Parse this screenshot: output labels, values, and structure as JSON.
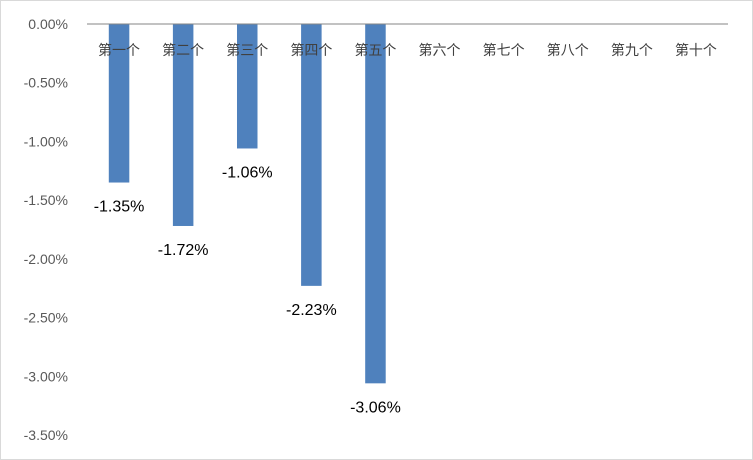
{
  "chart_data": {
    "type": "bar",
    "title": "",
    "xlabel": "",
    "ylabel": "",
    "categories": [
      "第一个",
      "第二个",
      "第三个",
      "第四个",
      "第五个",
      "第六个",
      "第七个",
      "第八个",
      "第九个",
      "第十个"
    ],
    "values": [
      -1.35,
      -1.72,
      -1.06,
      -2.23,
      -3.06,
      null,
      null,
      null,
      null,
      null
    ],
    "data_labels": [
      "-1.35%",
      "-1.72%",
      "-1.06%",
      "-2.23%",
      "-3.06%",
      "",
      "",
      "",
      "",
      ""
    ],
    "ylim": [
      -3.5,
      0
    ],
    "yticks": [
      0,
      -0.5,
      -1.0,
      -1.5,
      -2.0,
      -2.5,
      -3.0,
      -3.5
    ],
    "ytick_labels": [
      "0.00%",
      "-0.50%",
      "-1.00%",
      "-1.50%",
      "-2.00%",
      "-2.50%",
      "-3.00%",
      "-3.50%"
    ],
    "grid": false,
    "legend": "none",
    "colors": {
      "bar": "#4f81bd",
      "axis": "#868686"
    }
  }
}
